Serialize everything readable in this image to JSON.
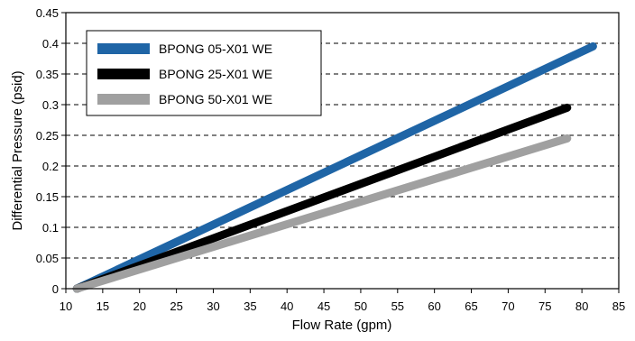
{
  "chart_data": {
    "type": "line",
    "xlabel": "Flow Rate (gpm)",
    "ylabel": "Differential Pressure (psid)",
    "xlim": [
      10,
      85
    ],
    "ylim": [
      0,
      0.45
    ],
    "x_ticks": [
      10,
      15,
      20,
      25,
      30,
      35,
      40,
      45,
      50,
      55,
      60,
      65,
      70,
      75,
      80,
      85
    ],
    "y_ticks": [
      0,
      0.05,
      0.1,
      0.15,
      0.2,
      0.25,
      0.3,
      0.35,
      0.4,
      0.45
    ],
    "x_tick_labels": [
      "10",
      "15",
      "20",
      "25",
      "30",
      "35",
      "40",
      "45",
      "50",
      "55",
      "60",
      "65",
      "70",
      "75",
      "80",
      "85"
    ],
    "y_tick_labels": [
      "0",
      "0.05",
      "0.1",
      "0.15",
      "0.2",
      "0.25",
      "0.3",
      "0.35",
      "0.4",
      "0.45"
    ],
    "grid": "horizontal dashed",
    "legend_position": "top-left",
    "series": [
      {
        "name": "BPONG 05-X01 WE",
        "color": "#1f65a6",
        "x": [
          11.5,
          81.5
        ],
        "y": [
          0,
          0.395
        ]
      },
      {
        "name": "BPONG 25-X01 WE",
        "color": "#000000",
        "x": [
          11.5,
          78
        ],
        "y": [
          0,
          0.295
        ]
      },
      {
        "name": "BPONG 50-X01 WE",
        "color": "#a0a0a0",
        "x": [
          11.5,
          78
        ],
        "y": [
          0,
          0.245
        ]
      }
    ]
  }
}
